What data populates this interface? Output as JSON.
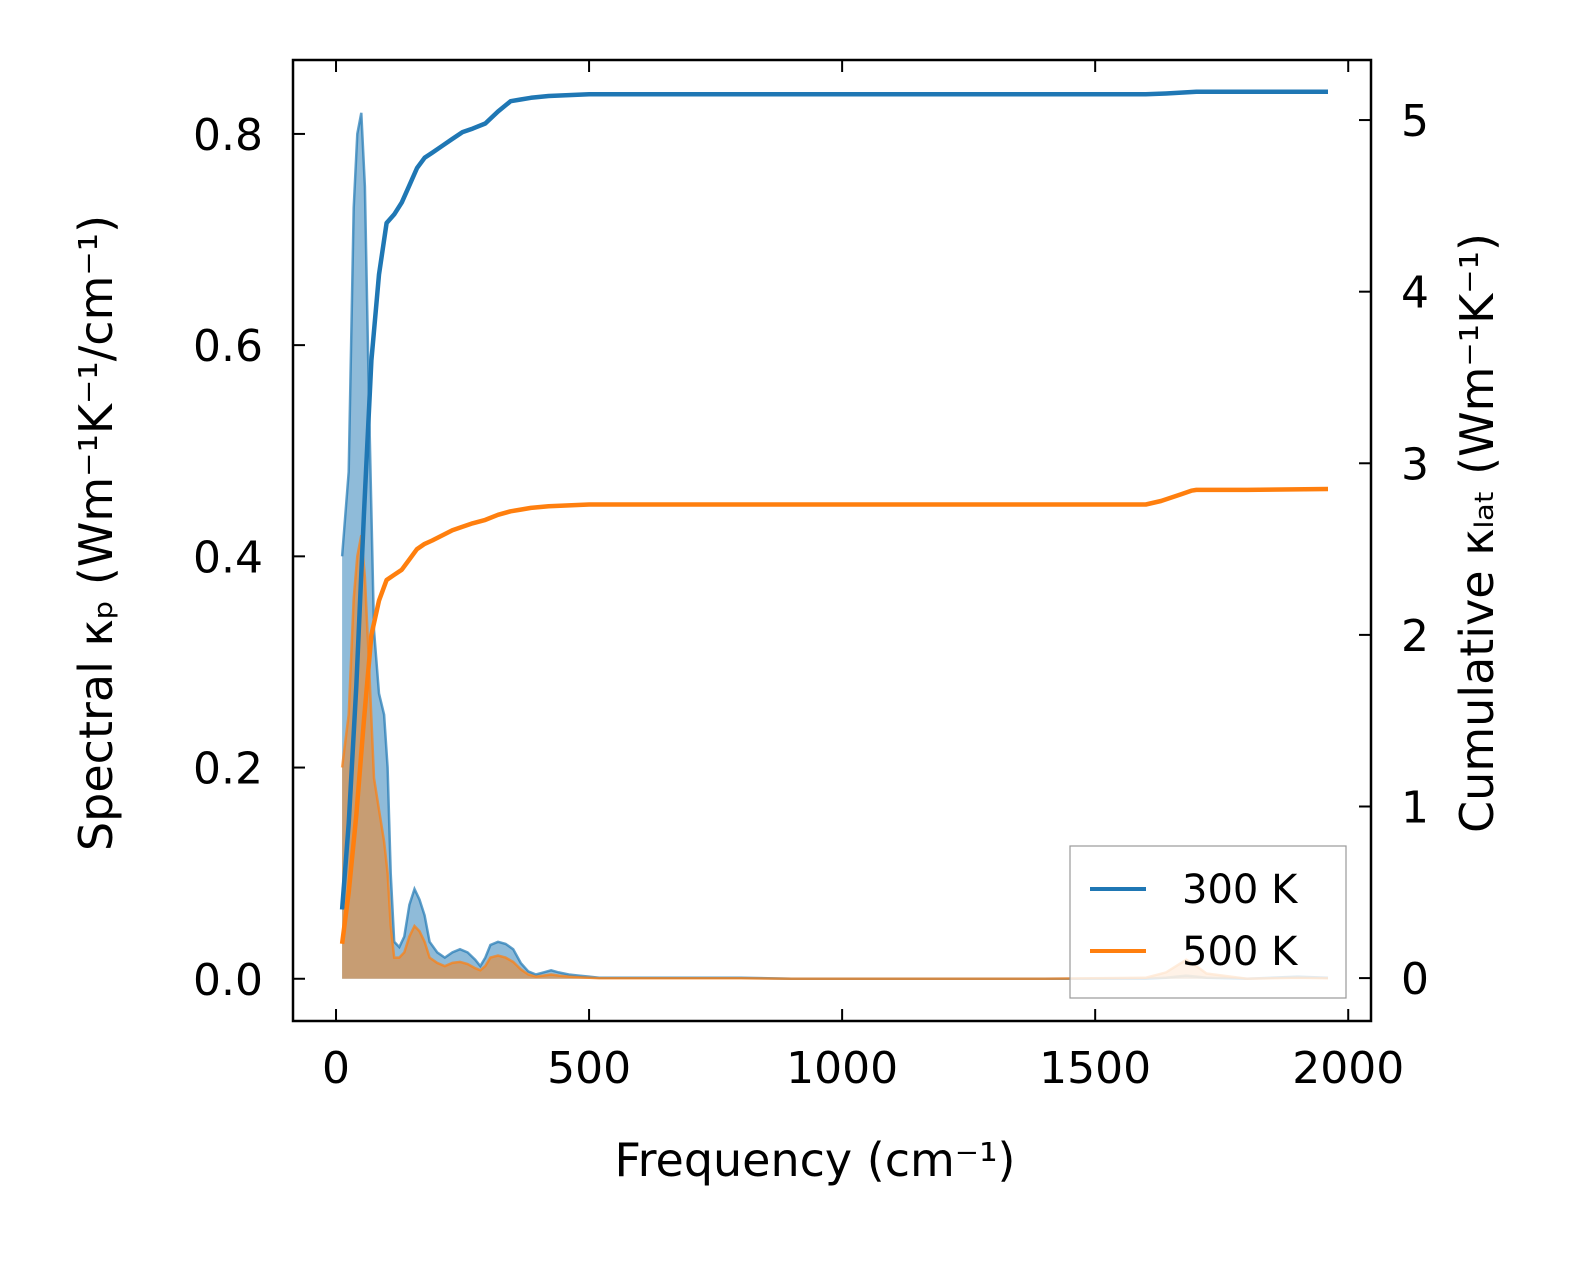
{
  "chart_data": {
    "type": "line",
    "title": "",
    "xlabel": "Frequency (cm⁻¹)",
    "ylabel_left": "Spectral κₚ (Wm⁻¹K⁻¹/cm⁻¹)",
    "ylabel_right": "Cumulative κₗₐₜ (Wm⁻¹K⁻¹)",
    "xlim": [
      -85,
      2045
    ],
    "ylim_left": [
      -0.04,
      0.87
    ],
    "ylim_right": [
      -0.25,
      5.35
    ],
    "x_ticks": [
      0,
      500,
      1000,
      1500,
      2000
    ],
    "x_tick_labels": [
      "0",
      "500",
      "1000",
      "1500",
      "2000"
    ],
    "y_left_ticks": [
      0.0,
      0.2,
      0.4,
      0.6,
      0.8
    ],
    "y_left_tick_labels": [
      "0.0",
      "0.2",
      "0.4",
      "0.6",
      "0.8"
    ],
    "y_right_ticks": [
      0,
      1,
      2,
      3,
      4,
      5
    ],
    "y_right_tick_labels": [
      "0",
      "1",
      "2",
      "3",
      "4",
      "5"
    ],
    "legend_position": "bottom-right",
    "series": [
      {
        "name": "300 K",
        "color": "#1f77b4",
        "kind": "spectral",
        "axis": "left",
        "x": [
          12,
          25,
          35,
          42,
          50,
          57,
          65,
          75,
          85,
          95,
          102,
          108,
          115,
          125,
          135,
          145,
          155,
          165,
          175,
          185,
          200,
          215,
          230,
          245,
          260,
          275,
          285,
          295,
          305,
          320,
          335,
          350,
          365,
          380,
          395,
          410,
          425,
          440,
          460,
          480,
          500,
          520,
          600,
          700,
          800,
          900,
          1000,
          1200,
          1400,
          1600,
          1640,
          1660,
          1680,
          1700,
          1720,
          1800,
          1900,
          1960
        ],
        "y": [
          0.4,
          0.48,
          0.73,
          0.8,
          0.82,
          0.75,
          0.55,
          0.33,
          0.27,
          0.25,
          0.2,
          0.1,
          0.035,
          0.03,
          0.04,
          0.07,
          0.085,
          0.075,
          0.06,
          0.035,
          0.025,
          0.02,
          0.025,
          0.028,
          0.025,
          0.018,
          0.012,
          0.02,
          0.032,
          0.035,
          0.033,
          0.028,
          0.015,
          0.007,
          0.004,
          0.006,
          0.008,
          0.006,
          0.004,
          0.003,
          0.002,
          0.001,
          0.001,
          0.001,
          0.001,
          0.0,
          0.0,
          0.0,
          0.0,
          0.0,
          0.001,
          0.002,
          0.003,
          0.002,
          0.001,
          0.0,
          0.002,
          0.001
        ]
      },
      {
        "name": "500 K",
        "color": "#ff7f0e",
        "kind": "spectral",
        "axis": "left",
        "x": [
          12,
          25,
          35,
          42,
          50,
          57,
          65,
          75,
          85,
          95,
          102,
          108,
          115,
          125,
          135,
          145,
          155,
          165,
          175,
          185,
          200,
          215,
          230,
          245,
          260,
          275,
          285,
          295,
          305,
          320,
          335,
          350,
          365,
          380,
          395,
          410,
          425,
          440,
          460,
          480,
          500,
          520,
          600,
          700,
          800,
          900,
          1000,
          1200,
          1400,
          1600,
          1640,
          1660,
          1680,
          1700,
          1720,
          1800,
          1900,
          1960
        ],
        "y": [
          0.2,
          0.25,
          0.36,
          0.4,
          0.42,
          0.38,
          0.3,
          0.19,
          0.16,
          0.13,
          0.1,
          0.05,
          0.02,
          0.02,
          0.025,
          0.04,
          0.05,
          0.045,
          0.035,
          0.02,
          0.015,
          0.012,
          0.015,
          0.016,
          0.014,
          0.01,
          0.008,
          0.012,
          0.02,
          0.022,
          0.02,
          0.016,
          0.009,
          0.004,
          0.002,
          0.003,
          0.004,
          0.003,
          0.002,
          0.0015,
          0.001,
          0.0005,
          0.0005,
          0.0005,
          0.0005,
          0.0,
          0.0,
          0.0,
          0.0,
          0.001,
          0.006,
          0.012,
          0.018,
          0.012,
          0.005,
          0.0,
          0.001,
          0.0005
        ]
      },
      {
        "name": "300 K",
        "color": "#1f77b4",
        "kind": "cumulative",
        "axis": "right",
        "x": [
          12,
          25,
          40,
          55,
          70,
          85,
          100,
          115,
          130,
          145,
          160,
          175,
          190,
          210,
          230,
          250,
          270,
          295,
          320,
          345,
          365,
          385,
          420,
          500,
          700,
          1000,
          1300,
          1600,
          1640,
          1670,
          1700,
          1800,
          1960
        ],
        "y": [
          0.4,
          0.9,
          1.7,
          2.7,
          3.6,
          4.1,
          4.4,
          4.45,
          4.52,
          4.62,
          4.72,
          4.78,
          4.81,
          4.85,
          4.89,
          4.93,
          4.95,
          4.98,
          5.05,
          5.11,
          5.12,
          5.13,
          5.14,
          5.15,
          5.15,
          5.15,
          5.15,
          5.15,
          5.155,
          5.16,
          5.165,
          5.165,
          5.165
        ]
      },
      {
        "name": "500 K",
        "color": "#ff7f0e",
        "kind": "cumulative",
        "axis": "right",
        "x": [
          12,
          25,
          40,
          55,
          70,
          85,
          100,
          115,
          130,
          145,
          160,
          175,
          190,
          210,
          230,
          250,
          270,
          295,
          320,
          345,
          365,
          385,
          420,
          500,
          700,
          1000,
          1300,
          1600,
          1630,
          1650,
          1670,
          1690,
          1700,
          1800,
          1960
        ],
        "y": [
          0.2,
          0.5,
          0.95,
          1.5,
          2.0,
          2.2,
          2.32,
          2.35,
          2.38,
          2.44,
          2.5,
          2.53,
          2.55,
          2.58,
          2.61,
          2.63,
          2.65,
          2.67,
          2.7,
          2.72,
          2.73,
          2.74,
          2.75,
          2.76,
          2.76,
          2.76,
          2.76,
          2.76,
          2.78,
          2.8,
          2.82,
          2.84,
          2.845,
          2.845,
          2.85
        ]
      }
    ]
  }
}
